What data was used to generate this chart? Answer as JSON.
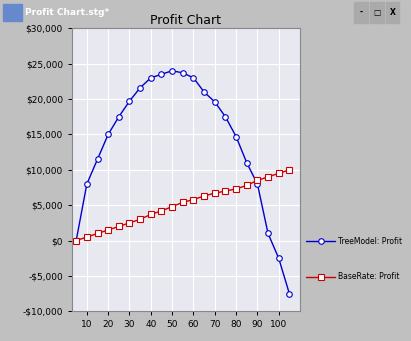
{
  "title": "Profit Chart",
  "x_tree": [
    5,
    10,
    15,
    20,
    25,
    30,
    35,
    40,
    45,
    50,
    55,
    60,
    65,
    70,
    75,
    80,
    85,
    90,
    95,
    100,
    105
  ],
  "y_tree": [
    0,
    8000,
    11500,
    15000,
    17500,
    19700,
    21600,
    23000,
    23500,
    24000,
    23700,
    23000,
    21000,
    19600,
    17500,
    14700,
    11000,
    8000,
    1000,
    -2500,
    -7500
  ],
  "x_base": [
    5,
    10,
    15,
    20,
    25,
    30,
    35,
    40,
    45,
    50,
    55,
    60,
    65,
    70,
    75,
    80,
    85,
    90,
    95,
    100,
    105
  ],
  "y_base": [
    0,
    500,
    1000,
    1500,
    2000,
    2500,
    3000,
    3700,
    4200,
    4800,
    5400,
    5800,
    6300,
    6700,
    7000,
    7300,
    7800,
    8500,
    9000,
    9500,
    10000
  ],
  "tree_color": "#0000CC",
  "base_color": "#CC0000",
  "tree_label": "TreeModel: Profit",
  "base_label": "BaseRate: Profit",
  "bg_color": "#C0C0C0",
  "plot_bg": "#E8E8F0",
  "titlebar_color": "#000080",
  "title_fontsize": 9,
  "xlim": [
    3,
    110
  ],
  "ylim": [
    -10000,
    30000
  ],
  "yticks": [
    -10000,
    -5000,
    0,
    5000,
    10000,
    15000,
    20000,
    25000,
    30000
  ],
  "xticks": [
    10,
    20,
    30,
    40,
    50,
    60,
    70,
    80,
    90,
    100
  ],
  "window_title": "Profit Chart.stg*",
  "grid_color": "#FFFFFF",
  "marker_size": 4,
  "linewidth": 1.0
}
